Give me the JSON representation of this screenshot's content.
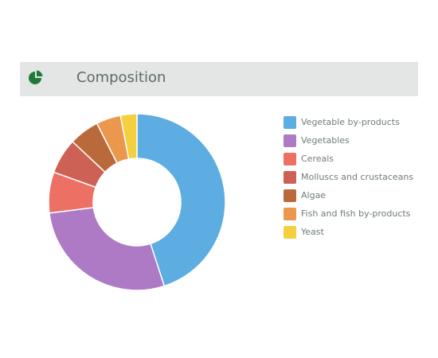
{
  "panel": {
    "title": "Composition",
    "icon": "pie-chart-icon",
    "icon_color": "#1f7a3a",
    "header_background": "#e3e6e4"
  },
  "chart_data": {
    "type": "pie",
    "variant": "donut",
    "start_angle_deg": 0,
    "direction": "clockwise",
    "legend_position": "right",
    "series": [
      {
        "name": "Vegetable by-products",
        "value": 45,
        "color": "#5dade2"
      },
      {
        "name": "Vegetables",
        "value": 28,
        "color": "#af7ac5"
      },
      {
        "name": "Cereals",
        "value": 7.5,
        "color": "#ec7063"
      },
      {
        "name": "Molluscs and crustaceans",
        "value": 6.5,
        "color": "#cd6155"
      },
      {
        "name": "Algae",
        "value": 5.5,
        "color": "#ba6a3a"
      },
      {
        "name": "Fish and fish by-products",
        "value": 4.5,
        "color": "#eb984e"
      },
      {
        "name": "Yeast",
        "value": 3,
        "color": "#f4d03f"
      }
    ]
  }
}
